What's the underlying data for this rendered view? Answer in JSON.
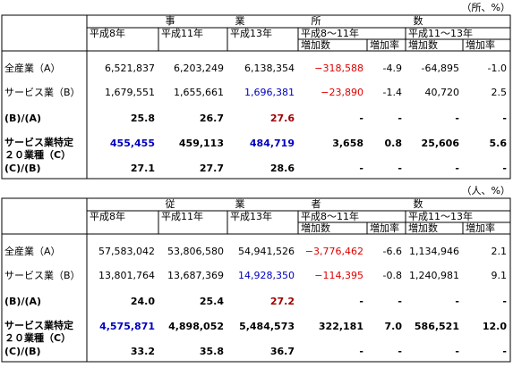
{
  "tables": [
    {
      "unit": "（所、%）",
      "title": [
        "事",
        "業",
        "所",
        "数"
      ],
      "col_headers": [
        "平成8年",
        "平成11年",
        "平成13年",
        "平成8～11年",
        "平成11～13年"
      ],
      "sub_headers": [
        "増加数",
        "増加率",
        "増加数",
        "増加率"
      ],
      "rows": [
        {
          "label": [
            "全産業（A）"
          ],
          "cells": [
            "6,521,837",
            "6,203,249",
            "6,138,354",
            "−318,588",
            "-4.9",
            "-64,895",
            "-1.0"
          ]
        },
        {
          "label": [
            "サービス業（B）"
          ],
          "cells": [
            "1,679,551",
            "1,655,661",
            "1,696,381",
            "−23,890",
            "-1.4",
            "40,720",
            "2.5"
          ]
        },
        {
          "label": [
            "(B)/(A)"
          ],
          "cells": [
            "25.8",
            "26.7",
            "27.6",
            "-",
            "-",
            "-",
            "-"
          ]
        },
        {
          "label": [
            "サービス業特定",
            "２０業種（C）"
          ],
          "cells": [
            "455,455",
            "459,113",
            "484,719",
            "3,658",
            "0.8",
            "25,606",
            "5.6"
          ]
        },
        {
          "label": [
            "(C)/(B)"
          ],
          "cells": [
            "27.1",
            "27.7",
            "28.6",
            "-",
            "-",
            "-",
            "-"
          ]
        }
      ]
    },
    {
      "unit": "（人、%）",
      "title": [
        "従",
        "業",
        "者",
        "数"
      ],
      "col_headers": [
        "平成8年",
        "平成11年",
        "平成13年",
        "平成8～11年",
        "平成11～13年"
      ],
      "sub_headers": [
        "増加数",
        "増加率",
        "増加数",
        "増加率"
      ],
      "rows": [
        {
          "label": [
            "全産業（A）"
          ],
          "cells": [
            "57,583,042",
            "53,806,580",
            "54,941,526",
            "−3,776,462",
            "-6.6",
            "1,134,946",
            "2.1"
          ]
        },
        {
          "label": [
            "サービス業（B）"
          ],
          "cells": [
            "13,801,764",
            "13,687,369",
            "14,928,350",
            "−114,395",
            "-0.8",
            "1,240,981",
            "9.1"
          ]
        },
        {
          "label": [
            "(B)/(A)"
          ],
          "cells": [
            "24.0",
            "25.4",
            "27.2",
            "-",
            "-",
            "-",
            "-"
          ]
        },
        {
          "label": [
            "サービス業特定",
            "２０業種（C）"
          ],
          "cells": [
            "4,575,871",
            "4,898,052",
            "5,484,573",
            "322,181",
            "7.0",
            "586,521",
            "12.0"
          ]
        },
        {
          "label": [
            "(C)/(B)"
          ],
          "cells": [
            "33.2",
            "35.8",
            "36.7",
            "-",
            "-",
            "-",
            "-"
          ]
        }
      ]
    }
  ]
}
